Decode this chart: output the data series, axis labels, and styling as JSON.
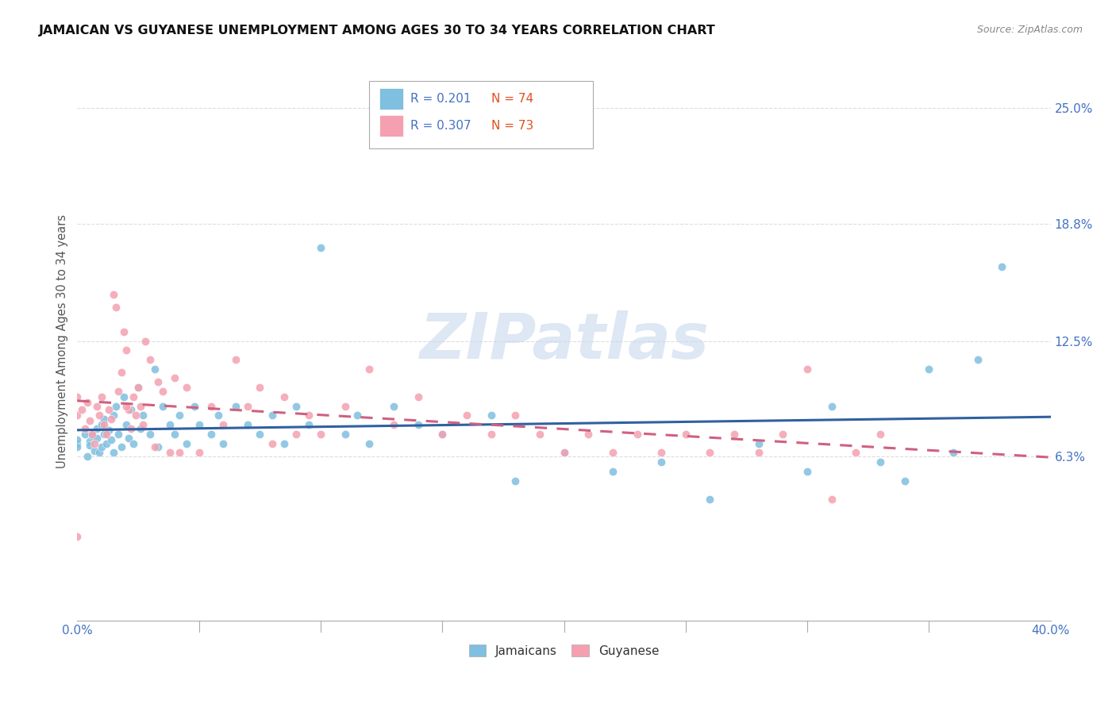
{
  "title": "JAMAICAN VS GUYANESE UNEMPLOYMENT AMONG AGES 30 TO 34 YEARS CORRELATION CHART",
  "source": "Source: ZipAtlas.com",
  "ylabel": "Unemployment Among Ages 30 to 34 years",
  "ytick_labels": [
    "25.0%",
    "18.8%",
    "12.5%",
    "6.3%"
  ],
  "ytick_values": [
    0.25,
    0.188,
    0.125,
    0.063
  ],
  "xlim": [
    0.0,
    0.4
  ],
  "ylim": [
    -0.025,
    0.275
  ],
  "legend_jamaicans": "Jamaicans",
  "legend_guyanese": "Guyanese",
  "r_jamaicans": "0.201",
  "n_jamaicans": "74",
  "r_guyanese": "0.307",
  "n_guyanese": "73",
  "color_jamaicans": "#7fbfdf",
  "color_guyanese": "#f4a0b0",
  "color_line_jamaicans": "#3060a0",
  "color_line_guyanese": "#d06080",
  "watermark": "ZIPatlas",
  "watermark_color": "#c8d8ee",
  "j_x": [
    0.0,
    0.0,
    0.0,
    0.003,
    0.004,
    0.005,
    0.005,
    0.006,
    0.007,
    0.008,
    0.008,
    0.009,
    0.01,
    0.01,
    0.011,
    0.011,
    0.012,
    0.013,
    0.014,
    0.015,
    0.015,
    0.016,
    0.017,
    0.018,
    0.019,
    0.02,
    0.021,
    0.022,
    0.023,
    0.025,
    0.026,
    0.027,
    0.03,
    0.032,
    0.033,
    0.035,
    0.038,
    0.04,
    0.042,
    0.045,
    0.048,
    0.05,
    0.055,
    0.058,
    0.06,
    0.065,
    0.07,
    0.075,
    0.08,
    0.085,
    0.09,
    0.095,
    0.1,
    0.11,
    0.115,
    0.12,
    0.13,
    0.14,
    0.15,
    0.17,
    0.18,
    0.2,
    0.22,
    0.24,
    0.26,
    0.28,
    0.3,
    0.31,
    0.33,
    0.34,
    0.35,
    0.36,
    0.37,
    0.38
  ],
  "j_y": [
    0.07,
    0.072,
    0.068,
    0.075,
    0.063,
    0.071,
    0.069,
    0.074,
    0.066,
    0.073,
    0.078,
    0.065,
    0.08,
    0.068,
    0.075,
    0.083,
    0.07,
    0.077,
    0.072,
    0.085,
    0.065,
    0.09,
    0.075,
    0.068,
    0.095,
    0.08,
    0.073,
    0.088,
    0.07,
    0.1,
    0.078,
    0.085,
    0.075,
    0.11,
    0.068,
    0.09,
    0.08,
    0.075,
    0.085,
    0.07,
    0.09,
    0.08,
    0.075,
    0.085,
    0.07,
    0.09,
    0.08,
    0.075,
    0.085,
    0.07,
    0.09,
    0.08,
    0.175,
    0.075,
    0.085,
    0.07,
    0.09,
    0.08,
    0.075,
    0.085,
    0.05,
    0.065,
    0.055,
    0.06,
    0.04,
    0.07,
    0.055,
    0.09,
    0.06,
    0.05,
    0.11,
    0.065,
    0.115,
    0.165
  ],
  "g_x": [
    0.0,
    0.0,
    0.0,
    0.002,
    0.003,
    0.004,
    0.005,
    0.006,
    0.007,
    0.008,
    0.009,
    0.01,
    0.011,
    0.012,
    0.013,
    0.014,
    0.015,
    0.016,
    0.017,
    0.018,
    0.019,
    0.02,
    0.021,
    0.022,
    0.023,
    0.024,
    0.025,
    0.026,
    0.027,
    0.028,
    0.03,
    0.032,
    0.033,
    0.035,
    0.038,
    0.04,
    0.042,
    0.045,
    0.05,
    0.055,
    0.06,
    0.065,
    0.07,
    0.075,
    0.08,
    0.085,
    0.09,
    0.095,
    0.1,
    0.11,
    0.12,
    0.13,
    0.14,
    0.15,
    0.16,
    0.17,
    0.18,
    0.19,
    0.2,
    0.21,
    0.22,
    0.23,
    0.24,
    0.25,
    0.26,
    0.27,
    0.28,
    0.29,
    0.3,
    0.31,
    0.32,
    0.33,
    0.02
  ],
  "g_y": [
    0.085,
    0.095,
    0.02,
    0.088,
    0.078,
    0.092,
    0.082,
    0.075,
    0.07,
    0.09,
    0.085,
    0.095,
    0.08,
    0.075,
    0.088,
    0.083,
    0.15,
    0.143,
    0.098,
    0.108,
    0.13,
    0.12,
    0.088,
    0.078,
    0.095,
    0.085,
    0.1,
    0.09,
    0.08,
    0.125,
    0.115,
    0.068,
    0.103,
    0.098,
    0.065,
    0.105,
    0.065,
    0.1,
    0.065,
    0.09,
    0.08,
    0.115,
    0.09,
    0.1,
    0.07,
    0.095,
    0.075,
    0.085,
    0.075,
    0.09,
    0.11,
    0.08,
    0.095,
    0.075,
    0.085,
    0.075,
    0.085,
    0.075,
    0.065,
    0.075,
    0.065,
    0.075,
    0.065,
    0.075,
    0.065,
    0.075,
    0.065,
    0.075,
    0.11,
    0.04,
    0.065,
    0.075,
    0.09
  ]
}
